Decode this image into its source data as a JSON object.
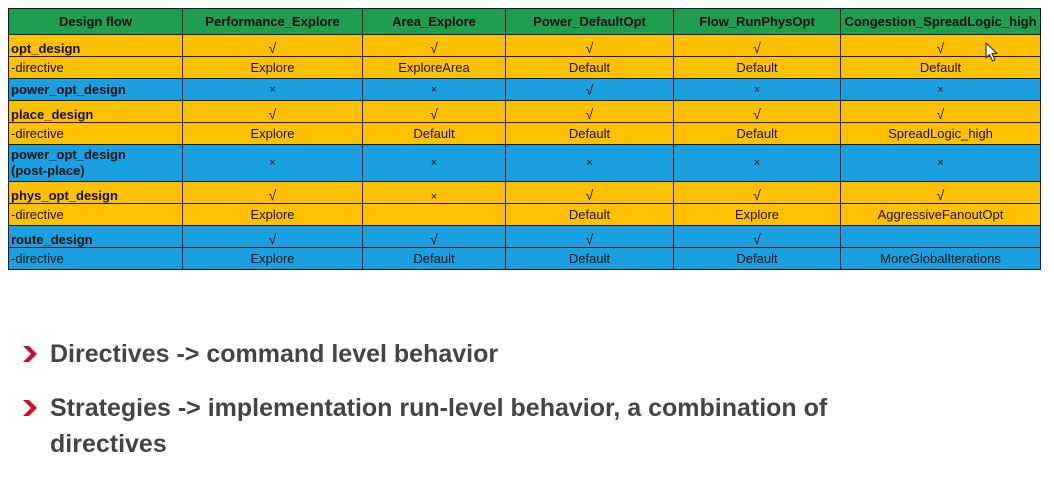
{
  "table": {
    "headers": [
      "Design flow",
      "Performance_Explore",
      "Area_Explore",
      "Power_DefaultOpt",
      "Flow_RunPhysOpt",
      "Congestion_SpreadLogic_high"
    ],
    "rows": [
      {
        "name": "opt_design",
        "marks": [
          "√",
          "√",
          "√",
          "√",
          "√"
        ],
        "sub": "-directive",
        "values": [
          "Explore",
          "ExploreArea",
          "Default",
          "Default",
          "Default"
        ]
      },
      {
        "name": "power_opt_design",
        "marks": [
          "×",
          "×",
          "√",
          "×",
          "×"
        ]
      },
      {
        "name": "place_design",
        "marks": [
          "√",
          "√",
          "√",
          "√",
          "√"
        ],
        "sub": "-directive",
        "values": [
          "Explore",
          "Default",
          "Default",
          "Default",
          "SpreadLogic_high"
        ]
      },
      {
        "name_line1": "power_opt_design",
        "name_line2": "(post-place)",
        "marks": [
          "×",
          "×",
          "×",
          "×",
          "×"
        ]
      },
      {
        "name": "phys_opt_design",
        "marks": [
          "√",
          "×",
          "√",
          "√",
          "√"
        ],
        "sub": "-directive",
        "values": [
          "Explore",
          "",
          "Default",
          "Explore",
          "AggressiveFanoutOpt"
        ]
      },
      {
        "name": "route_design",
        "marks": [
          "√",
          "√",
          "√",
          "√",
          ""
        ],
        "sub": "-directive",
        "values": [
          "Explore",
          "Default",
          "Default",
          "Default",
          "MoreGlobalIterations"
        ]
      }
    ]
  },
  "bullets": [
    "Directives -> command level behavior",
    "Strategies -> implementation run-level behavior, a combination of directives"
  ],
  "colors": {
    "header": "#1e9e4e",
    "orange": "#ffc000",
    "blue": "#1aa0e0",
    "chevron": "#c8102e"
  },
  "icons": [
    "chevron-right-icon",
    "mouse-cursor-icon"
  ]
}
